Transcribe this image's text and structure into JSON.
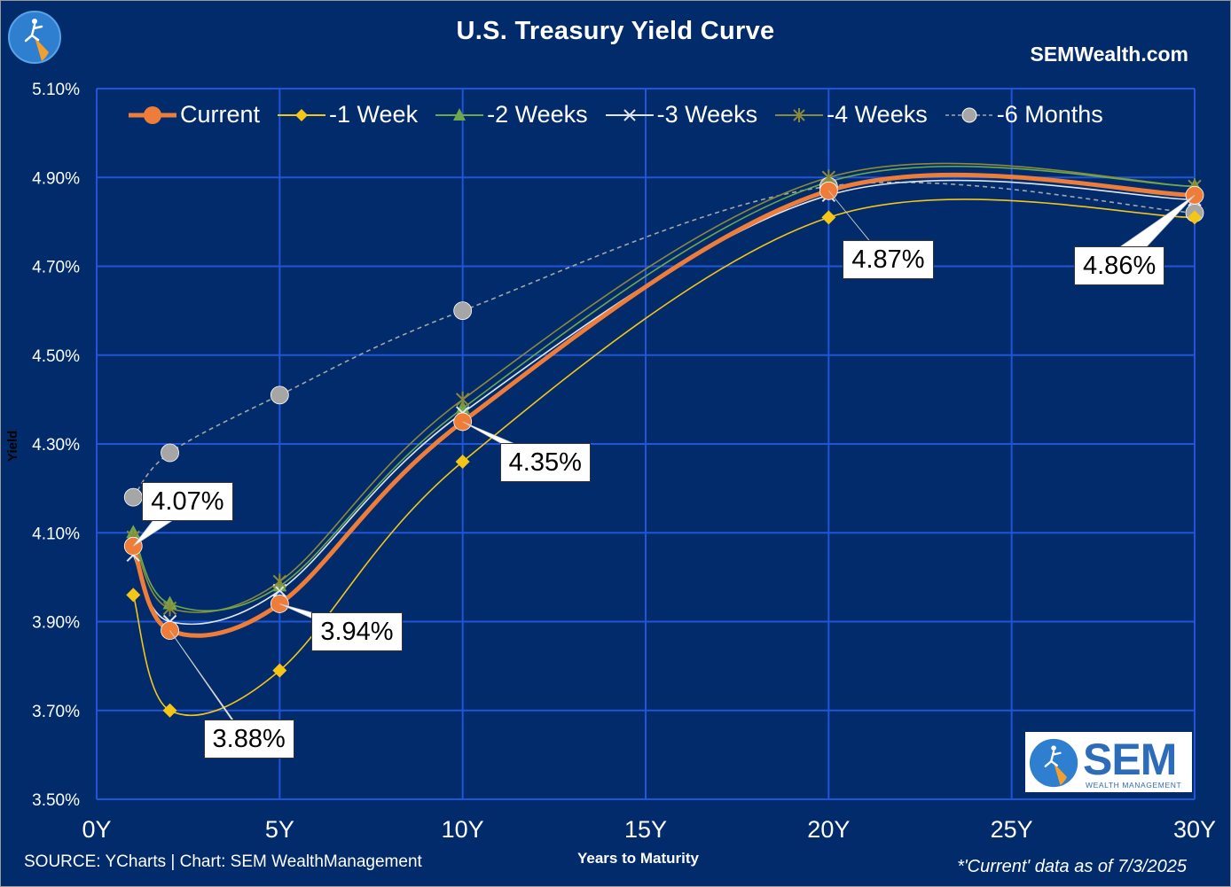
{
  "title": "U.S. Treasury Yield Curve",
  "site": "SEMWealth.com",
  "source": "SOURCE: YCharts | Chart: SEM WealthManagement",
  "as_of": "*'Current' data as of 7/3/2025",
  "logo": {
    "word": "SEM",
    "subtitle": "WEALTH MANAGEMENT"
  },
  "colors": {
    "background": "#012b6b",
    "grid": "#1f55d6",
    "current": "#ef7d3a",
    "week1": "#f5c518",
    "week2": "#6fa84a",
    "week3": "#dfe6f0",
    "week4": "#8c8a3a",
    "month6": "#a6a6a6"
  },
  "callouts": [
    {
      "label": "4.07%",
      "x": 1,
      "y": 4.07
    },
    {
      "label": "3.88%",
      "x": 2,
      "y": 3.88
    },
    {
      "label": "3.94%",
      "x": 5,
      "y": 3.94
    },
    {
      "label": "4.35%",
      "x": 10,
      "y": 4.35
    },
    {
      "label": "4.87%",
      "x": 20,
      "y": 4.87
    },
    {
      "label": "4.86%",
      "x": 30,
      "y": 4.86
    }
  ],
  "chart_data": {
    "type": "scatter",
    "title": "U.S. Treasury Yield Curve",
    "xlabel": "Years to Maturity",
    "ylabel": "Yield",
    "xlim": [
      0,
      30
    ],
    "ylim": [
      3.5,
      5.1
    ],
    "x_ticks": [
      0,
      5,
      10,
      15,
      20,
      25,
      30
    ],
    "x_tick_labels": [
      "0Y",
      "5Y",
      "10Y",
      "15Y",
      "20Y",
      "25Y",
      "30Y"
    ],
    "y_ticks": [
      3.5,
      3.7,
      3.9,
      4.1,
      4.3,
      4.5,
      4.7,
      4.9,
      5.1
    ],
    "y_tick_labels": [
      "3.50%",
      "3.70%",
      "3.90%",
      "4.10%",
      "4.30%",
      "4.50%",
      "4.70%",
      "4.90%",
      "5.10%"
    ],
    "grid": true,
    "legend_position": "top",
    "x": [
      1,
      2,
      5,
      10,
      20,
      30
    ],
    "series": [
      {
        "name": "Current",
        "values": [
          4.07,
          3.88,
          3.94,
          4.35,
          4.87,
          4.86
        ],
        "marker": "circle"
      },
      {
        "name": "-1 Week",
        "values": [
          3.96,
          3.7,
          3.79,
          4.26,
          4.81,
          4.81
        ],
        "marker": "diamond"
      },
      {
        "name": "-2 Weeks",
        "values": [
          4.1,
          3.94,
          3.98,
          4.38,
          4.89,
          4.88
        ],
        "marker": "triangle"
      },
      {
        "name": "-3 Weeks",
        "values": [
          4.05,
          3.9,
          3.97,
          4.37,
          4.86,
          4.85
        ],
        "marker": "x"
      },
      {
        "name": "-4 Weeks",
        "values": [
          4.09,
          3.93,
          3.99,
          4.4,
          4.9,
          4.88
        ],
        "marker": "star"
      },
      {
        "name": "-6 Months",
        "values": [
          4.18,
          4.28,
          4.41,
          4.6,
          4.88,
          4.82
        ],
        "marker": "circle"
      }
    ]
  }
}
